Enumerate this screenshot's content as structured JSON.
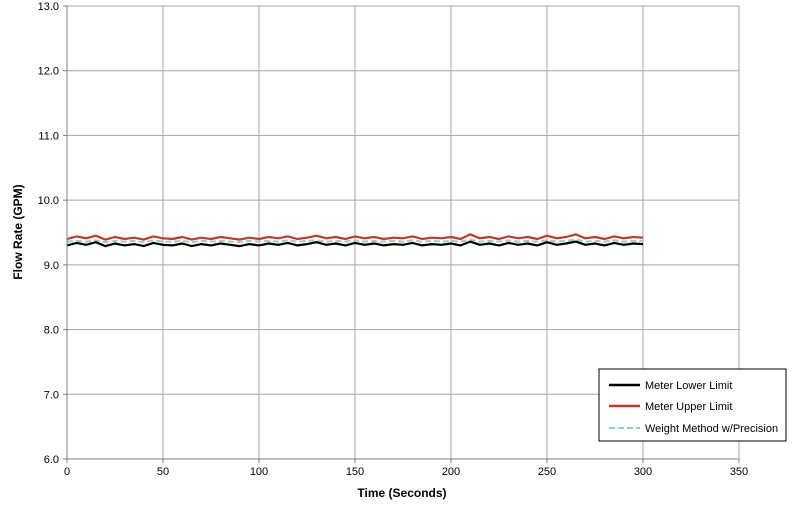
{
  "chart_data": {
    "type": "line",
    "xlabel": "Time  (Seconds)",
    "ylabel": "Flow Rate (GPM)",
    "xlim": [
      0,
      350
    ],
    "ylim": [
      6.0,
      13.0
    ],
    "x_ticks": [
      "0",
      "50",
      "100",
      "150",
      "200",
      "250",
      "300",
      "350"
    ],
    "y_ticks": [
      "6.0",
      "7.0",
      "8.0",
      "9.0",
      "10.0",
      "11.0",
      "12.0",
      "13.0"
    ],
    "grid": true,
    "legend_position": "bottom-right",
    "x": [
      0,
      5,
      10,
      15,
      20,
      25,
      30,
      35,
      40,
      45,
      50,
      55,
      60,
      65,
      70,
      75,
      80,
      85,
      90,
      95,
      100,
      105,
      110,
      115,
      120,
      125,
      130,
      135,
      140,
      145,
      150,
      155,
      160,
      165,
      170,
      175,
      180,
      185,
      190,
      195,
      200,
      205,
      210,
      215,
      220,
      225,
      230,
      235,
      240,
      245,
      250,
      255,
      260,
      265,
      270,
      275,
      280,
      285,
      290,
      295,
      300
    ],
    "series": [
      {
        "name": "Meter Lower Limit",
        "color": "#000000",
        "dash": "solid",
        "values": [
          9.3,
          9.34,
          9.31,
          9.35,
          9.29,
          9.33,
          9.3,
          9.32,
          9.29,
          9.34,
          9.31,
          9.3,
          9.33,
          9.29,
          9.32,
          9.3,
          9.33,
          9.31,
          9.29,
          9.32,
          9.3,
          9.33,
          9.31,
          9.34,
          9.3,
          9.32,
          9.35,
          9.31,
          9.33,
          9.3,
          9.34,
          9.31,
          9.33,
          9.3,
          9.32,
          9.31,
          9.34,
          9.3,
          9.32,
          9.31,
          9.33,
          9.3,
          9.36,
          9.31,
          9.33,
          9.3,
          9.34,
          9.31,
          9.33,
          9.3,
          9.35,
          9.31,
          9.33,
          9.36,
          9.31,
          9.33,
          9.3,
          9.34,
          9.31,
          9.33,
          9.32
        ]
      },
      {
        "name": "Meter Upper Limit",
        "color": "#c0392b",
        "dash": "solid",
        "values": [
          9.4,
          9.44,
          9.41,
          9.45,
          9.39,
          9.43,
          9.4,
          9.42,
          9.39,
          9.44,
          9.41,
          9.4,
          9.43,
          9.39,
          9.42,
          9.4,
          9.43,
          9.41,
          9.39,
          9.42,
          9.4,
          9.43,
          9.41,
          9.44,
          9.4,
          9.42,
          9.45,
          9.41,
          9.43,
          9.4,
          9.44,
          9.41,
          9.43,
          9.4,
          9.42,
          9.41,
          9.44,
          9.4,
          9.42,
          9.41,
          9.43,
          9.4,
          9.47,
          9.41,
          9.43,
          9.4,
          9.44,
          9.41,
          9.43,
          9.4,
          9.45,
          9.41,
          9.43,
          9.47,
          9.41,
          9.43,
          9.4,
          9.44,
          9.41,
          9.43,
          9.42
        ]
      },
      {
        "name": "Weight Method w/Precision",
        "color": "#8fd3c8",
        "dash": "dashed",
        "values": [
          9.36,
          9.37,
          9.36,
          9.38,
          9.35,
          9.37,
          9.36,
          9.37,
          9.35,
          9.38,
          9.36,
          9.36,
          9.37,
          9.35,
          9.37,
          9.36,
          9.37,
          9.36,
          9.35,
          9.37,
          9.36,
          9.37,
          9.36,
          9.38,
          9.36,
          9.37,
          9.38,
          9.36,
          9.37,
          9.36,
          9.38,
          9.36,
          9.37,
          9.36,
          9.37,
          9.36,
          9.38,
          9.36,
          9.37,
          9.36,
          9.37,
          9.36,
          9.39,
          9.36,
          9.37,
          9.36,
          9.38,
          9.36,
          9.37,
          9.36,
          9.38,
          9.36,
          9.37,
          9.39,
          9.36,
          9.37,
          9.36,
          9.38,
          9.36,
          9.37,
          9.37
        ]
      }
    ]
  }
}
